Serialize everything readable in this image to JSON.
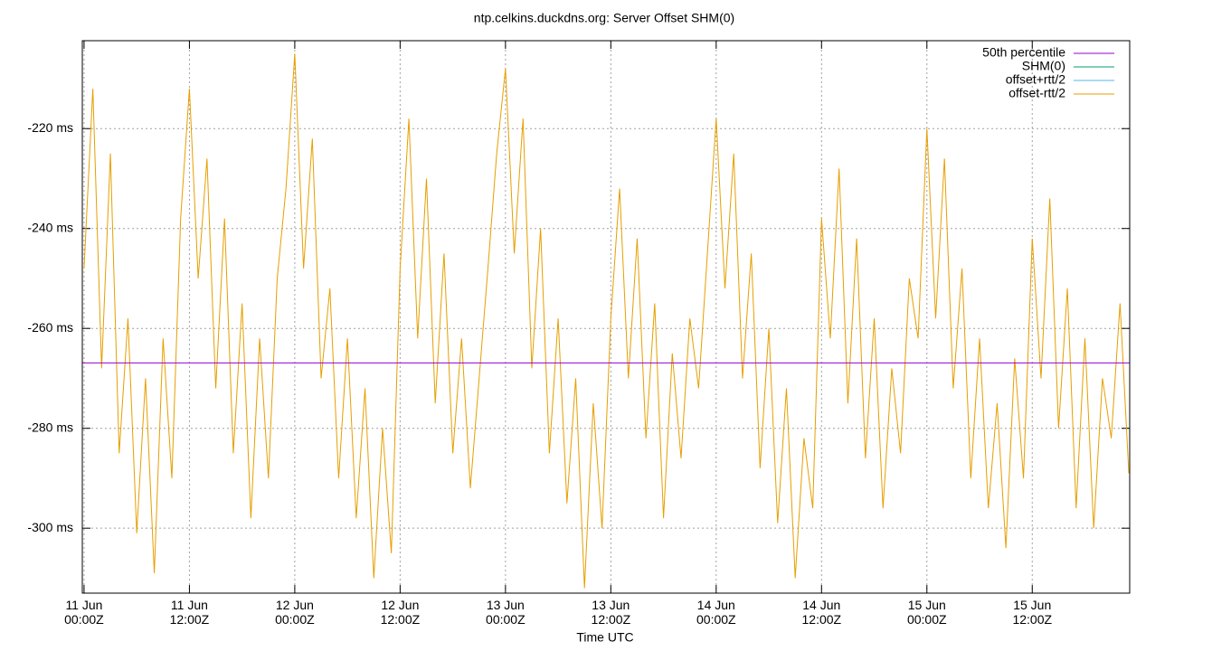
{
  "chart_data": {
    "type": "line",
    "title": "ntp.celkins.duckdns.org: Server Offset SHM(0)",
    "x_label": "Time UTC",
    "xlim": [
      -0.2,
      119.1
    ],
    "ylim": [
      -313,
      -202.4
    ],
    "xticks": [
      {
        "value": 0,
        "label": "11 Jun\n00:00Z"
      },
      {
        "value": 12,
        "label": "11 Jun\n12:00Z"
      },
      {
        "value": 24,
        "label": "12 Jun\n00:00Z"
      },
      {
        "value": 36,
        "label": "12 Jun\n12:00Z"
      },
      {
        "value": 48,
        "label": "13 Jun\n00:00Z"
      },
      {
        "value": 60,
        "label": "13 Jun\n12:00Z"
      },
      {
        "value": 72,
        "label": "14 Jun\n00:00Z"
      },
      {
        "value": 84,
        "label": "14 Jun\n12:00Z"
      },
      {
        "value": 96,
        "label": "15 Jun\n00:00Z"
      },
      {
        "value": 108,
        "label": "15 Jun\n12:00Z"
      }
    ],
    "yticks": [
      {
        "value": -300,
        "label": "-300 ms"
      },
      {
        "value": -280,
        "label": "-280 ms"
      },
      {
        "value": -260,
        "label": "-260 ms"
      },
      {
        "value": -240,
        "label": "-240 ms"
      },
      {
        "value": -220,
        "label": "-220 ms"
      }
    ],
    "grid": true,
    "legend": "top-right",
    "series": [
      {
        "name": "50th percentile",
        "color": "#9400d3",
        "x": [
          -0.2,
          119.1
        ],
        "values": [
          -266.9,
          -266.9
        ]
      },
      {
        "name": "SHM(0)",
        "color": "#009e73"
      },
      {
        "name": "offset+rtt/2",
        "color": "#56b4e9"
      },
      {
        "name": "offset-rtt/2",
        "color": "#e69f00",
        "x": [
          0,
          1,
          2,
          3,
          4,
          5,
          6,
          7,
          8,
          9,
          10,
          11,
          12,
          13,
          14,
          15,
          16,
          17,
          18,
          19,
          20,
          21,
          22,
          23,
          24,
          25,
          26,
          27,
          28,
          29,
          30,
          31,
          32,
          33,
          34,
          35,
          36,
          37,
          38,
          39,
          40,
          41,
          42,
          43,
          44,
          45,
          46,
          47,
          48,
          49,
          50,
          51,
          52,
          53,
          54,
          55,
          56,
          57,
          58,
          59,
          60,
          61,
          62,
          63,
          64,
          65,
          66,
          67,
          68,
          69,
          70,
          71,
          72,
          73,
          74,
          75,
          76,
          77,
          78,
          79,
          80,
          81,
          82,
          83,
          84,
          85,
          86,
          87,
          88,
          89,
          90,
          91,
          92,
          93,
          94,
          95,
          96,
          97,
          98,
          99,
          100,
          101,
          102,
          103,
          104,
          105,
          106,
          107,
          108,
          109,
          110,
          111,
          112,
          113,
          114,
          115,
          116,
          117,
          118,
          119
        ],
        "values": [
          -248,
          -212,
          -268,
          -225,
          -285,
          -258,
          -301,
          -270,
          -309,
          -262,
          -290,
          -238,
          -212,
          -250,
          -226,
          -272,
          -238,
          -285,
          -255,
          -298,
          -262,
          -290,
          -250,
          -232,
          -205,
          -248,
          -222,
          -270,
          -252,
          -290,
          -262,
          -298,
          -272,
          -310,
          -280,
          -305,
          -248,
          -218,
          -262,
          -230,
          -275,
          -245,
          -285,
          -262,
          -292,
          -270,
          -248,
          -225,
          -208,
          -245,
          -218,
          -268,
          -240,
          -285,
          -258,
          -295,
          -270,
          -312,
          -275,
          -300,
          -258,
          -232,
          -270,
          -242,
          -282,
          -255,
          -298,
          -265,
          -286,
          -258,
          -272,
          -245,
          -218,
          -252,
          -225,
          -270,
          -245,
          -288,
          -260,
          -299,
          -272,
          -310,
          -282,
          -296,
          -238,
          -262,
          -228,
          -275,
          -242,
          -286,
          -258,
          -296,
          -268,
          -285,
          -250,
          -262,
          -220,
          -258,
          -226,
          -272,
          -248,
          -290,
          -262,
          -296,
          -275,
          -304,
          -266,
          -290,
          -242,
          -270,
          -234,
          -280,
          -252,
          -296,
          -262,
          -300,
          -270,
          -282,
          -255,
          -289
        ]
      }
    ]
  }
}
